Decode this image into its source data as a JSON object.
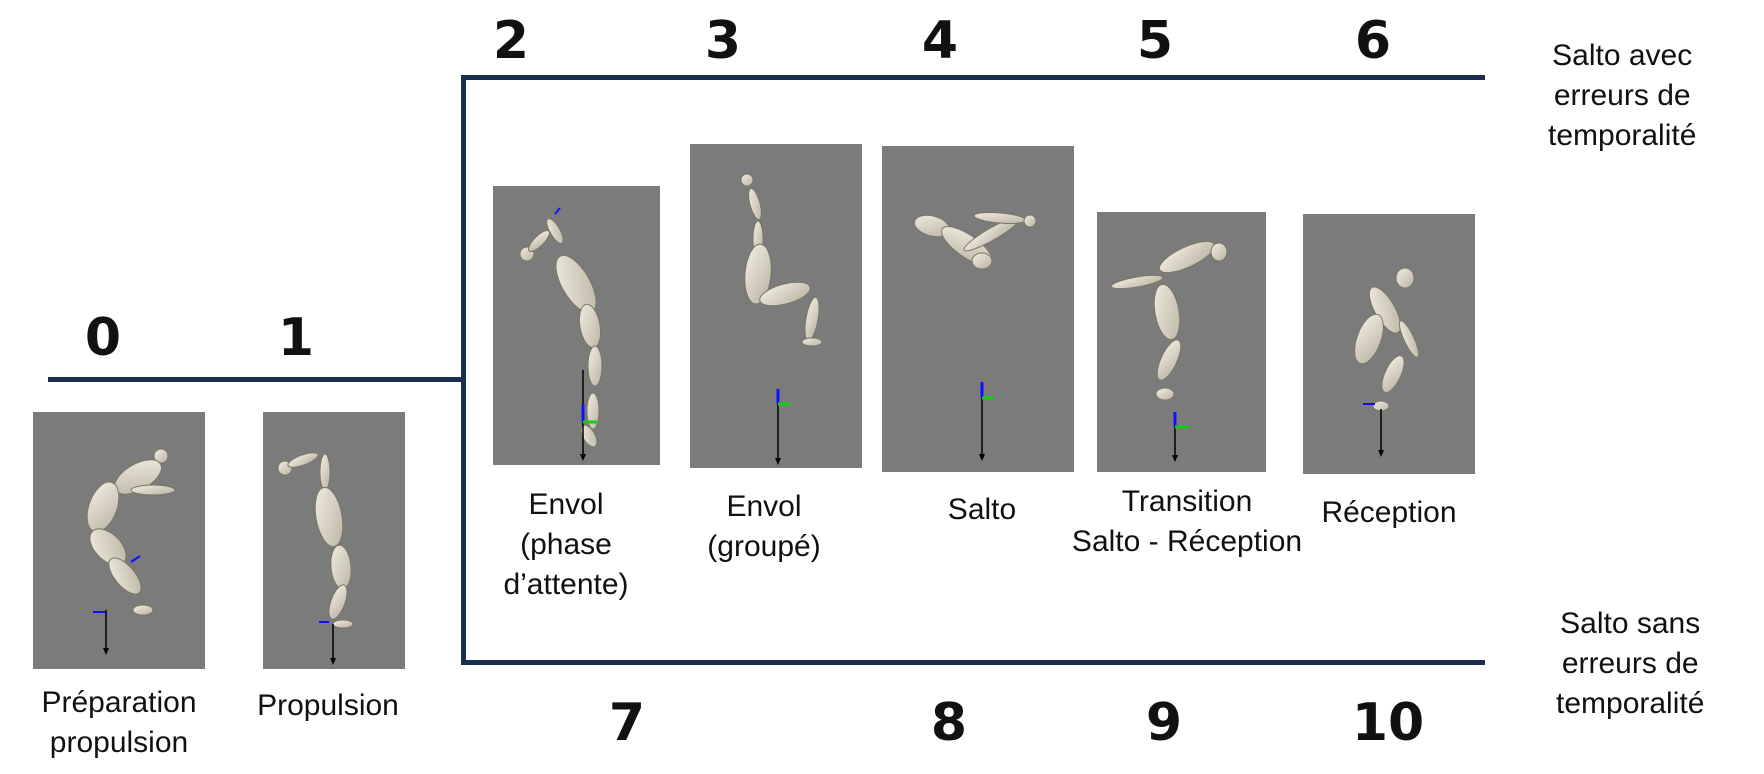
{
  "phase_numbers": {
    "n0": "0",
    "n1": "1",
    "n2": "2",
    "n3": "3",
    "n4": "4",
    "n5": "5",
    "n6": "6",
    "n7": "7",
    "n8": "8",
    "n9": "9",
    "n10": "10"
  },
  "side_labels": {
    "with_errors": [
      "Salto avec",
      "erreurs de",
      "temporalité"
    ],
    "without_errors": [
      "Salto sans",
      "erreurs de",
      "temporalité"
    ]
  },
  "phases": [
    {
      "lines": [
        "Préparation",
        "propulsion"
      ]
    },
    {
      "lines": [
        "Propulsion"
      ]
    },
    {
      "lines": [
        "Envol",
        "(phase",
        "d’attente)"
      ]
    },
    {
      "lines": [
        "Envol",
        "(groupé)"
      ]
    },
    {
      "lines": [
        "Salto"
      ]
    },
    {
      "lines": [
        "Transition",
        "Salto - Réception"
      ]
    },
    {
      "lines": [
        "Réception"
      ]
    }
  ],
  "colors": {
    "timeline": "#1c2e4f",
    "panel_bg": "#7b7b7b",
    "mannequin": "#e3ded0",
    "axis_blue": "#1010ff",
    "axis_green": "#10d010"
  }
}
